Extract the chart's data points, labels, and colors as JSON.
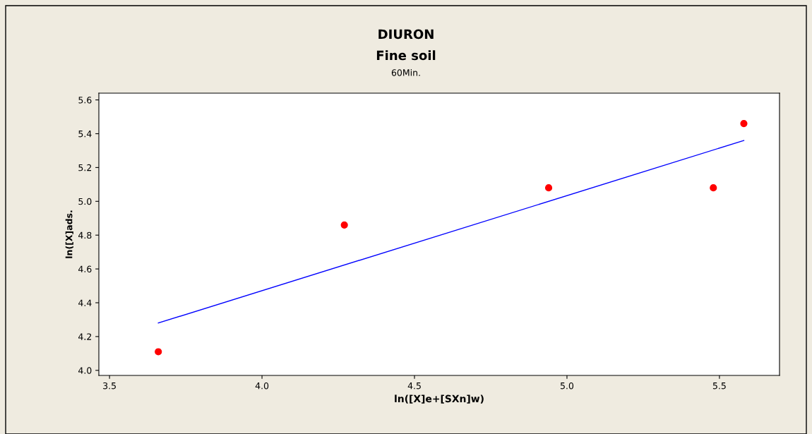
{
  "chart_data": {
    "type": "scatter",
    "title": "DIURON",
    "subtitle": "Fine soil",
    "annotations": [
      "60Min."
    ],
    "xlabel": "ln([X]e+[SXn]w)",
    "ylabel": "ln([X]ads.",
    "xlim": [
      3.465,
      5.697
    ],
    "ylim": [
      3.97,
      5.64
    ],
    "xticks": [
      3.5,
      {
        "value": 4.0,
        "label": "4.0"
      },
      4.5,
      {
        "value": 5.0,
        "label": "5.0"
      },
      5.5
    ],
    "yticks": [
      {
        "value": 4.0,
        "label": "4.0"
      },
      {
        "value": 4.2,
        "label": "4.2"
      },
      {
        "value": 4.4,
        "label": "4.4"
      },
      {
        "value": 4.6,
        "label": "4.6"
      },
      {
        "value": 4.8,
        "label": "4.8"
      },
      {
        "value": 5.0,
        "label": "5.0"
      },
      {
        "value": 5.2,
        "label": "5.2"
      },
      {
        "value": 5.4,
        "label": "5.4"
      },
      {
        "value": 5.6,
        "label": "5.6"
      }
    ],
    "grid": false,
    "legend": false,
    "series": [
      {
        "type": "scatter",
        "color": "#ff0000",
        "marker": "circle",
        "x": [
          3.66,
          4.27,
          4.94,
          5.48,
          5.58
        ],
        "values": [
          4.11,
          4.86,
          5.08,
          5.08,
          5.46
        ]
      },
      {
        "type": "line",
        "color": "#0000ff",
        "marker": "none",
        "line_style": "solid",
        "x": [
          3.66,
          5.58
        ],
        "values": [
          4.28,
          5.36
        ]
      }
    ]
  }
}
